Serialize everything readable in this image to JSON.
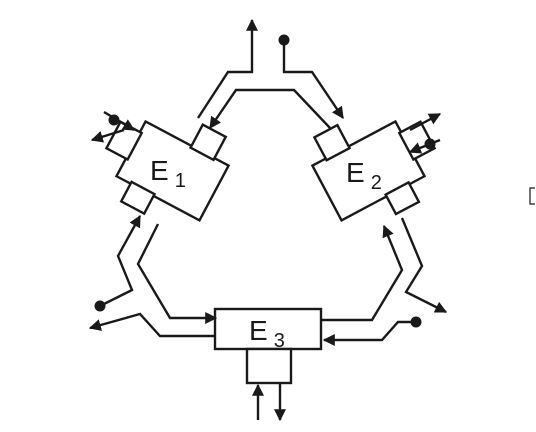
{
  "colors": {
    "stroke": "#1a1a1a",
    "background": "#ffffff"
  },
  "units": {
    "e1": {
      "letter": "E",
      "index": "1"
    },
    "e2": {
      "letter": "E",
      "index": "2"
    },
    "e3": {
      "letter": "E",
      "index": "3"
    }
  }
}
